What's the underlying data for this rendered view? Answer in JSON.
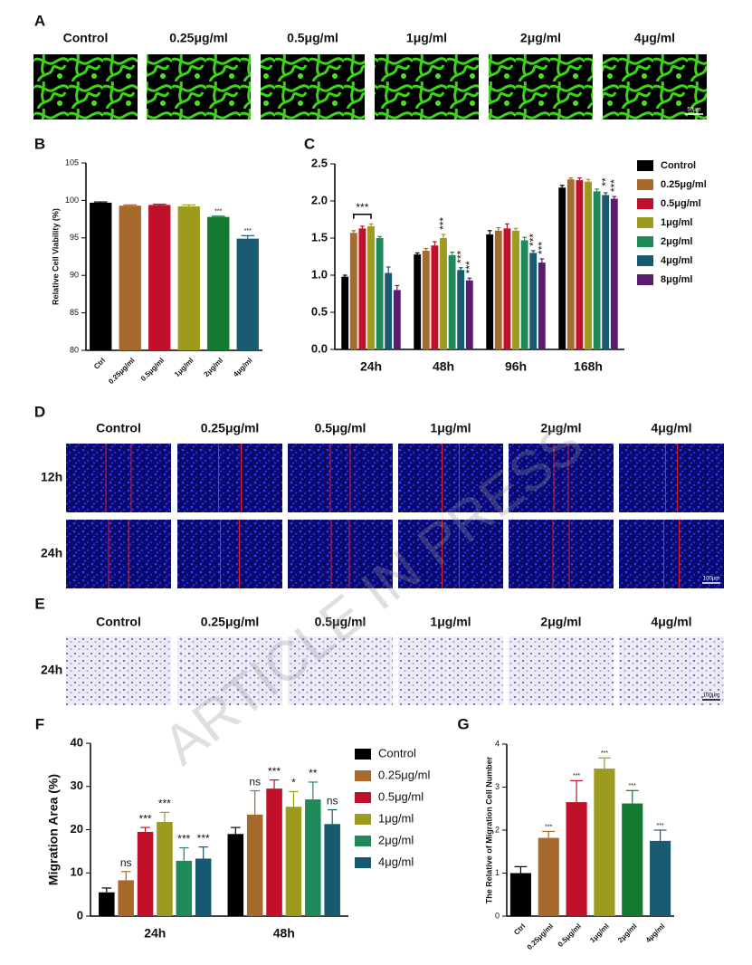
{
  "watermark": "ARTICLE IN PRESS",
  "panel_a": {
    "label": "A",
    "columns": [
      "Control",
      "0.25μg/ml",
      "0.5μg/ml",
      "1μg/ml",
      "2μg/ml",
      "4μg/ml"
    ],
    "scale_bar": "50μm"
  },
  "panel_d": {
    "label": "D",
    "columns": [
      "Control",
      "0.25μg/ml",
      "0.5μg/ml",
      "1μg/ml",
      "2μg/ml",
      "4μg/ml"
    ],
    "rows": [
      "12h",
      "24h"
    ],
    "scale_bar": "100μm"
  },
  "panel_e": {
    "label": "E",
    "columns": [
      "Control",
      "0.25μg/ml",
      "0.5μg/ml",
      "1μg/ml",
      "2μg/ml",
      "4μg/ml"
    ],
    "rows": [
      "24h"
    ],
    "scale_bar": "100μm"
  },
  "chart_data": [
    {
      "type": "bar",
      "panel_label": "B",
      "ylabel": "Relative Cell Viability (%)",
      "categories": [
        "Ctrl",
        "0.25μg/ml",
        "0.5μg/ml",
        "1μg/ml",
        "2μg/ml",
        "4μg/ml"
      ],
      "values": [
        99.7,
        99.3,
        99.4,
        99.2,
        97.8,
        94.9
      ],
      "errors": [
        0.1,
        0.1,
        0.1,
        0.2,
        0.1,
        0.4
      ],
      "significance": [
        null,
        null,
        null,
        null,
        "***",
        "***"
      ],
      "colors": [
        "#000000",
        "#a56a2c",
        "#c0102a",
        "#9c9b1f",
        "#137a2f",
        "#1b5b72"
      ],
      "ylim": [
        80,
        105
      ],
      "yticks": [
        80,
        85,
        90,
        95,
        100,
        105
      ]
    },
    {
      "type": "bar",
      "panel_label": "C",
      "bracket_label": "***",
      "categories": [
        "24h",
        "48h",
        "96h",
        "168h"
      ],
      "series": [
        {
          "name": "Control",
          "color": "#000000",
          "values": [
            0.98,
            1.28,
            1.55,
            2.18
          ],
          "errors": [
            0.02,
            0.02,
            0.05,
            0.03
          ],
          "significance": [
            null,
            null,
            null,
            null
          ]
        },
        {
          "name": "0.25μg/ml",
          "color": "#a56a2c",
          "values": [
            1.57,
            1.33,
            1.6,
            2.29
          ],
          "errors": [
            0.03,
            0.03,
            0.04,
            0.02
          ],
          "significance": [
            null,
            null,
            null,
            null
          ]
        },
        {
          "name": "0.5μg/ml",
          "color": "#c0102a",
          "values": [
            1.63,
            1.4,
            1.63,
            2.28
          ],
          "errors": [
            0.03,
            0.05,
            0.06,
            0.03
          ],
          "significance": [
            null,
            null,
            null,
            null
          ]
        },
        {
          "name": "1μg/ml",
          "color": "#9c9b1f",
          "values": [
            1.66,
            1.5,
            1.6,
            2.26
          ],
          "errors": [
            0.03,
            0.05,
            0.03,
            0.03
          ],
          "significance": [
            null,
            "***",
            null,
            null
          ]
        },
        {
          "name": "2μg/ml",
          "color": "#1e8a5a",
          "values": [
            1.5,
            1.27,
            1.47,
            2.13
          ],
          "errors": [
            0.02,
            0.04,
            0.04,
            0.03
          ],
          "significance": [
            null,
            null,
            null,
            null
          ]
        },
        {
          "name": "4μg/ml",
          "color": "#17596e",
          "values": [
            1.03,
            1.07,
            1.3,
            2.08
          ],
          "errors": [
            0.08,
            0.03,
            0.03,
            0.03
          ],
          "significance": [
            null,
            "***",
            "***",
            "**"
          ]
        },
        {
          "name": "8μg/ml",
          "color": "#5a1d6e",
          "values": [
            0.8,
            0.93,
            1.17,
            2.03
          ],
          "errors": [
            0.06,
            0.03,
            0.05,
            0.03
          ],
          "significance": [
            null,
            "***",
            "***",
            "***"
          ]
        }
      ],
      "ylim": [
        0,
        2.5
      ],
      "yticks": [
        {
          "value": 0,
          "label": "0.0"
        },
        0.5,
        {
          "value": 1,
          "label": "1.0"
        },
        1.5,
        {
          "value": 2,
          "label": "2.0"
        },
        2.5
      ]
    },
    {
      "type": "bar",
      "panel_label": "F",
      "ylabel": "Migration Area (%)",
      "categories": [
        "24h",
        "48h"
      ],
      "series": [
        {
          "name": "Control",
          "color": "#000000",
          "values": [
            5.5,
            19.0
          ],
          "errors": [
            1.0,
            1.5
          ],
          "significance": [
            null,
            null
          ]
        },
        {
          "name": "0.25μg/ml",
          "color": "#a56a2c",
          "values": [
            8.3,
            23.5
          ],
          "errors": [
            2.0,
            5.5
          ],
          "significance": [
            "ns",
            "ns"
          ]
        },
        {
          "name": "0.5μg/ml",
          "color": "#c0102a",
          "values": [
            19.5,
            29.5
          ],
          "errors": [
            1.0,
            2.0
          ],
          "significance": [
            "***",
            "***"
          ]
        },
        {
          "name": "1μg/ml",
          "color": "#9c9b1f",
          "values": [
            21.8,
            25.3
          ],
          "errors": [
            2.2,
            3.5
          ],
          "significance": [
            "***",
            "*"
          ]
        },
        {
          "name": "2μg/ml",
          "color": "#1e8a5a",
          "values": [
            12.8,
            27.0
          ],
          "errors": [
            3.0,
            4.0
          ],
          "significance": [
            "***",
            "**"
          ]
        },
        {
          "name": "4μg/ml",
          "color": "#17596e",
          "values": [
            13.3,
            21.3
          ],
          "errors": [
            2.7,
            3.3
          ],
          "significance": [
            "***",
            "ns"
          ]
        }
      ],
      "ylim": [
        0,
        40
      ],
      "yticks": [
        0,
        10,
        20,
        30,
        40
      ]
    },
    {
      "type": "bar",
      "panel_label": "G",
      "ylabel": "The Relative of Migration Cell Number",
      "categories": [
        "Ctrl",
        "0.25μg/ml",
        "0.5μg/ml",
        "1μg/ml",
        "2μg/ml",
        "4μg/ml"
      ],
      "values": [
        1.0,
        1.82,
        2.65,
        3.43,
        2.62,
        1.75
      ],
      "errors": [
        0.15,
        0.15,
        0.5,
        0.25,
        0.3,
        0.25
      ],
      "significance": [
        null,
        "***",
        "***",
        "***",
        "***",
        "***"
      ],
      "colors": [
        "#000000",
        "#a56a2c",
        "#c0102a",
        "#9c9b1f",
        "#137a2f",
        "#1b5b72"
      ],
      "ylim": [
        0,
        4
      ],
      "yticks": [
        0,
        1,
        2,
        3,
        4
      ]
    }
  ]
}
